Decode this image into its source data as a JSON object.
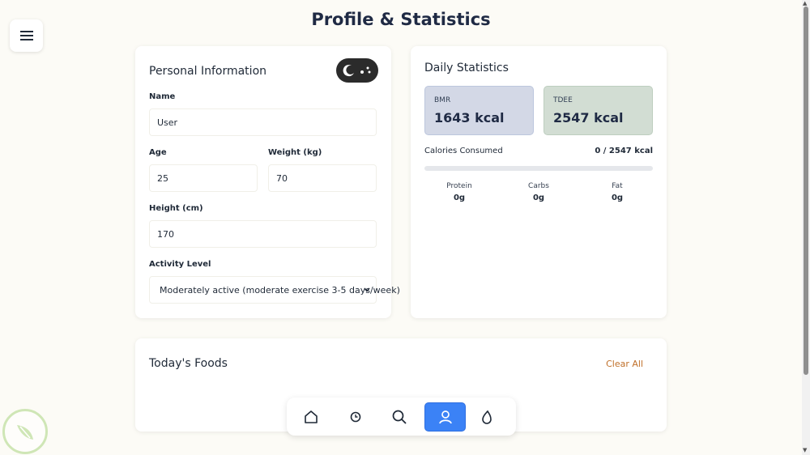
{
  "page": {
    "title": "Profile & Statistics"
  },
  "personal": {
    "title": "Personal Information",
    "name_label": "Name",
    "name_value": "User",
    "age_label": "Age",
    "age_value": "25",
    "weight_label": "Weight (kg)",
    "weight_value": "70",
    "height_label": "Height (cm)",
    "height_value": "170",
    "activity_label": "Activity Level",
    "activity_value": "Moderately active (moderate exercise 3-5 days/week)"
  },
  "stats": {
    "title": "Daily Statistics",
    "bmr_label": "BMR",
    "bmr_value": "1643 kcal",
    "tdee_label": "TDEE",
    "tdee_value": "2547 kcal",
    "consumed_label": "Calories Consumed",
    "consumed_value": "0 / 2547 kcal",
    "consumed_fraction": 0,
    "macros": [
      {
        "label": "Protein",
        "value": "0g"
      },
      {
        "label": "Carbs",
        "value": "0g"
      },
      {
        "label": "Fat",
        "value": "0g"
      }
    ]
  },
  "foods": {
    "title": "Today's Foods",
    "clear_label": "Clear All"
  },
  "nav": {
    "items": [
      "home-icon",
      "clock-icon",
      "search-icon",
      "user-icon",
      "drop-icon"
    ],
    "active": "user-icon"
  },
  "colors": {
    "accent": "#3b82f6",
    "clear_link": "#c0702a",
    "bmr_box": "#d3d8e6",
    "tdee_box": "#d2ddd3"
  }
}
